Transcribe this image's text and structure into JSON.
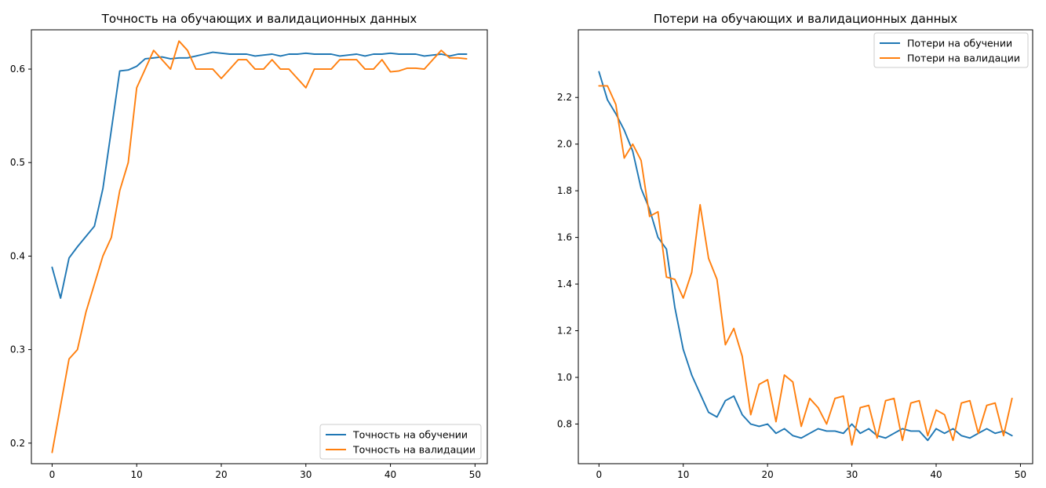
{
  "chart_data": [
    {
      "type": "line",
      "title": "Точность на обучающих и валидационных данных",
      "xlabel": "",
      "ylabel": "",
      "xlim": [
        -2.45,
        51.45
      ],
      "ylim": [
        0.178,
        0.642
      ],
      "xticks": [
        0,
        10,
        20,
        30,
        40,
        50
      ],
      "yticks": [
        0.2,
        0.3,
        0.4,
        0.5,
        0.6
      ],
      "ytick_labels": [
        "0.2",
        "0.3",
        "0.4",
        "0.5",
        "0.6"
      ],
      "legend_position": "lower-right",
      "grid": false,
      "series": [
        {
          "name": "Точность на обучении",
          "color": "#1f77b4",
          "x": [
            0,
            1,
            2,
            3,
            4,
            5,
            6,
            7,
            8,
            9,
            10,
            11,
            12,
            13,
            14,
            15,
            16,
            17,
            18,
            19,
            20,
            21,
            22,
            23,
            24,
            25,
            26,
            27,
            28,
            29,
            30,
            31,
            32,
            33,
            34,
            35,
            36,
            37,
            38,
            39,
            40,
            41,
            42,
            43,
            44,
            45,
            46,
            47,
            48,
            49
          ],
          "values": [
            0.388,
            0.355,
            0.398,
            0.41,
            0.421,
            0.432,
            0.472,
            0.535,
            0.598,
            0.599,
            0.603,
            0.611,
            0.612,
            0.613,
            0.611,
            0.612,
            0.612,
            0.614,
            0.616,
            0.618,
            0.617,
            0.616,
            0.616,
            0.616,
            0.614,
            0.615,
            0.616,
            0.614,
            0.616,
            0.616,
            0.617,
            0.616,
            0.616,
            0.616,
            0.614,
            0.615,
            0.616,
            0.614,
            0.616,
            0.616,
            0.617,
            0.616,
            0.616,
            0.616,
            0.614,
            0.615,
            0.616,
            0.614,
            0.616,
            0.616
          ]
        },
        {
          "name": "Точность на валидации",
          "color": "#ff7f0e",
          "x": [
            0,
            1,
            2,
            3,
            4,
            5,
            6,
            7,
            8,
            9,
            10,
            11,
            12,
            13,
            14,
            15,
            16,
            17,
            18,
            19,
            20,
            21,
            22,
            23,
            24,
            25,
            26,
            27,
            28,
            29,
            30,
            31,
            32,
            33,
            34,
            35,
            36,
            37,
            38,
            39,
            40,
            41,
            42,
            43,
            44,
            45,
            46,
            47,
            48,
            49
          ],
          "values": [
            0.19,
            0.24,
            0.29,
            0.3,
            0.34,
            0.37,
            0.4,
            0.42,
            0.47,
            0.5,
            0.58,
            0.6,
            0.62,
            0.61,
            0.6,
            0.63,
            0.62,
            0.6,
            0.6,
            0.6,
            0.59,
            0.6,
            0.61,
            0.61,
            0.6,
            0.6,
            0.61,
            0.6,
            0.6,
            0.59,
            0.58,
            0.6,
            0.6,
            0.6,
            0.61,
            0.61,
            0.61,
            0.6,
            0.6,
            0.61,
            0.597,
            0.598,
            0.601,
            0.601,
            0.6,
            0.61,
            0.62,
            0.612,
            0.612,
            0.611
          ]
        }
      ]
    },
    {
      "type": "line",
      "title": "Потери на обучающих и валидационных данных",
      "xlabel": "",
      "ylabel": "",
      "xlim": [
        -2.45,
        51.45
      ],
      "ylim": [
        0.63,
        2.49
      ],
      "xticks": [
        0,
        10,
        20,
        30,
        40,
        50
      ],
      "yticks": [
        0.8,
        1.0,
        1.2,
        1.4,
        1.6,
        1.8,
        2.0,
        2.2
      ],
      "ytick_labels": [
        "0.8",
        "1.0",
        "1.2",
        "1.4",
        "1.6",
        "1.8",
        "2.0",
        "2.2"
      ],
      "legend_position": "upper-right",
      "grid": false,
      "series": [
        {
          "name": "Потери на обучении",
          "color": "#1f77b4",
          "x": [
            0,
            1,
            2,
            3,
            4,
            5,
            6,
            7,
            8,
            9,
            10,
            11,
            12,
            13,
            14,
            15,
            16,
            17,
            18,
            19,
            20,
            21,
            22,
            23,
            24,
            25,
            26,
            27,
            28,
            29,
            30,
            31,
            32,
            33,
            34,
            35,
            36,
            37,
            38,
            39,
            40,
            41,
            42,
            43,
            44,
            45,
            46,
            47,
            48,
            49
          ],
          "values": [
            2.31,
            2.19,
            2.13,
            2.06,
            1.97,
            1.81,
            1.72,
            1.6,
            1.55,
            1.3,
            1.12,
            1.01,
            0.93,
            0.85,
            0.83,
            0.9,
            0.92,
            0.84,
            0.8,
            0.79,
            0.8,
            0.76,
            0.78,
            0.75,
            0.74,
            0.76,
            0.78,
            0.77,
            0.77,
            0.76,
            0.8,
            0.76,
            0.78,
            0.75,
            0.74,
            0.76,
            0.78,
            0.77,
            0.77,
            0.73,
            0.78,
            0.76,
            0.78,
            0.75,
            0.74,
            0.76,
            0.78,
            0.76,
            0.77,
            0.75
          ]
        },
        {
          "name": "Потери на валидации",
          "color": "#ff7f0e",
          "x": [
            0,
            1,
            2,
            3,
            4,
            5,
            6,
            7,
            8,
            9,
            10,
            11,
            12,
            13,
            14,
            15,
            16,
            17,
            18,
            19,
            20,
            21,
            22,
            23,
            24,
            25,
            26,
            27,
            28,
            29,
            30,
            31,
            32,
            33,
            34,
            35,
            36,
            37,
            38,
            39,
            40,
            41,
            42,
            43,
            44,
            45,
            46,
            47,
            48,
            49
          ],
          "values": [
            2.25,
            2.25,
            2.17,
            1.94,
            2.0,
            1.93,
            1.69,
            1.71,
            1.43,
            1.42,
            1.34,
            1.45,
            1.74,
            1.51,
            1.42,
            1.14,
            1.21,
            1.09,
            0.84,
            0.97,
            0.99,
            0.81,
            1.01,
            0.98,
            0.79,
            0.91,
            0.87,
            0.8,
            0.91,
            0.92,
            0.71,
            0.87,
            0.88,
            0.74,
            0.9,
            0.91,
            0.73,
            0.89,
            0.9,
            0.75,
            0.86,
            0.84,
            0.73,
            0.89,
            0.9,
            0.76,
            0.88,
            0.89,
            0.75,
            0.91
          ]
        }
      ]
    }
  ]
}
